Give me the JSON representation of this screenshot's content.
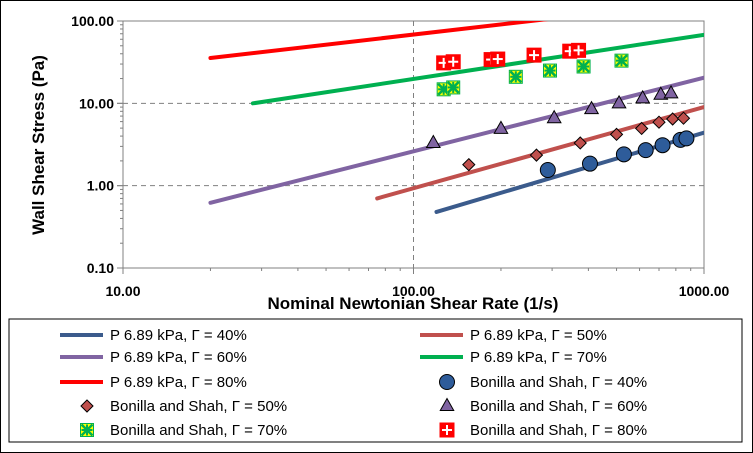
{
  "chart_data": {
    "type": "scatter",
    "xscale": "log",
    "yscale": "log",
    "xlim": [
      10,
      1000
    ],
    "ylim": [
      0.1,
      100
    ],
    "xlabel": "Nominal Newtonian Shear Rate (1/s)",
    "ylabel": "Wall Shear Stress (Pa)",
    "x_tick_labels": [
      "10.00",
      "100.00",
      "1000.00"
    ],
    "y_tick_labels": [
      "0.10",
      "1.00",
      "10.00",
      "100.00"
    ],
    "grid": "major, dashed",
    "legend_position": "bottom",
    "line_series": [
      {
        "name": "P  6.89  kPa, Γ = 40%",
        "color": "#3b5b8c",
        "points": [
          [
            120,
            0.48
          ],
          [
            1000,
            4.4
          ]
        ]
      },
      {
        "name": "P  6.89  kPa, Γ = 50%",
        "color": "#c0504d",
        "points": [
          [
            75,
            0.7
          ],
          [
            1000,
            9.0
          ]
        ]
      },
      {
        "name": "P  6.89  kPa, Γ = 60%",
        "color": "#8064a2",
        "points": [
          [
            20,
            0.62
          ],
          [
            1000,
            20.5
          ]
        ]
      },
      {
        "name": "P  6.89  kPa, Γ = 70%",
        "color": "#00b050",
        "points": [
          [
            28,
            10.0
          ],
          [
            1000,
            68.0
          ]
        ]
      },
      {
        "name": "P  6.89  kPa, Γ = 80%",
        "color": "#ff0000",
        "points": [
          [
            20,
            35.5
          ],
          [
            1000,
            175.0
          ]
        ]
      }
    ],
    "scatter_series": [
      {
        "name": "Bonilla and Shah, Γ = 40%",
        "marker": "circle",
        "color": "#2e5c9a",
        "points": [
          [
            290,
            1.55
          ],
          [
            405,
            1.85
          ],
          [
            530,
            2.4
          ],
          [
            630,
            2.7
          ],
          [
            720,
            3.1
          ],
          [
            830,
            3.6
          ],
          [
            870,
            3.75
          ]
        ]
      },
      {
        "name": "Bonilla and Shah, Γ = 50%",
        "marker": "diamond",
        "color": "#c0504d",
        "points": [
          [
            155,
            1.8
          ],
          [
            265,
            2.35
          ],
          [
            375,
            3.3
          ],
          [
            500,
            4.2
          ],
          [
            610,
            4.95
          ],
          [
            700,
            5.9
          ],
          [
            780,
            6.45
          ],
          [
            850,
            6.6
          ]
        ]
      },
      {
        "name": "Bonilla and Shah, Γ = 60%",
        "marker": "triangle",
        "color": "#8064a2",
        "points": [
          [
            117,
            3.3
          ],
          [
            200,
            4.9
          ],
          [
            305,
            6.6
          ],
          [
            410,
            8.5
          ],
          [
            510,
            10.0
          ],
          [
            615,
            11.5
          ],
          [
            710,
            12.7
          ],
          [
            770,
            13.2
          ]
        ]
      },
      {
        "name": "Bonilla and Shah, Γ = 70%",
        "marker": "star-box",
        "color": "#00b050",
        "points": [
          [
            127,
            14.8
          ],
          [
            137,
            15.6
          ],
          [
            225,
            21.0
          ],
          [
            295,
            25.0
          ],
          [
            385,
            28.0
          ],
          [
            520,
            33.0
          ]
        ]
      },
      {
        "name": "Bonilla and Shah, Γ = 80%",
        "marker": "cross-box",
        "color": "#ff0000",
        "points": [
          [
            127,
            31.0
          ],
          [
            137,
            32.0
          ],
          [
            185,
            34.0
          ],
          [
            195,
            34.5
          ],
          [
            260,
            38.5
          ],
          [
            345,
            43.0
          ],
          [
            370,
            44.0
          ]
        ]
      }
    ]
  },
  "legend": {
    "items": [
      {
        "label": "P  6.89  kPa, Γ = 40%",
        "type": "line",
        "color": "#3b5b8c"
      },
      {
        "label": "P  6.89  kPa, Γ = 50%",
        "type": "line",
        "color": "#c0504d"
      },
      {
        "label": "P  6.89  kPa, Γ = 60%",
        "type": "line",
        "color": "#8064a2"
      },
      {
        "label": "P  6.89  kPa, Γ = 70%",
        "type": "line",
        "color": "#00b050"
      },
      {
        "label": "P  6.89  kPa, Γ = 80%",
        "type": "line",
        "color": "#ff0000"
      },
      {
        "label": "Bonilla and Shah, Γ = 40%",
        "type": "circle",
        "color": "#2e5c9a"
      },
      {
        "label": "Bonilla and Shah, Γ = 50%",
        "type": "diamond",
        "color": "#c0504d"
      },
      {
        "label": "Bonilla and Shah, Γ = 60%",
        "type": "triangle",
        "color": "#8064a2"
      },
      {
        "label": "Bonilla and Shah, Γ = 70%",
        "type": "star-box",
        "color": "#00b050"
      },
      {
        "label": "Bonilla and Shah, Γ = 80%",
        "type": "cross-box",
        "color": "#ff0000"
      }
    ]
  }
}
